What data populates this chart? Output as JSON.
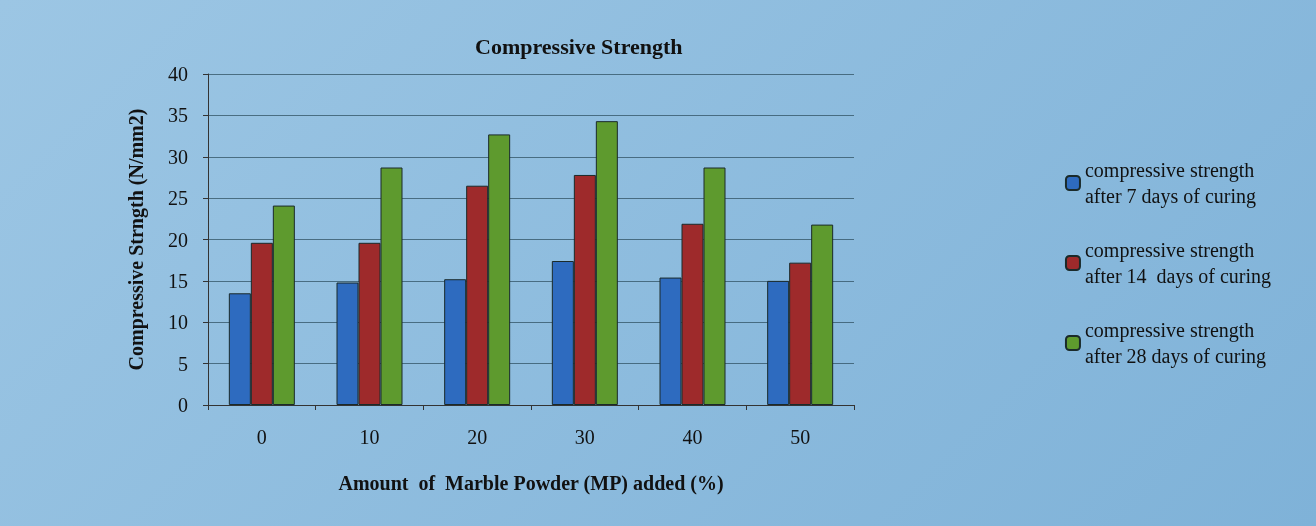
{
  "chart_data": {
    "type": "bar",
    "title": "Compressive Strength",
    "xlabel": "Amount  of  Marble Powder (MP) added (%)",
    "ylabel": "Compressive Strngth (N/mm2)",
    "categories": [
      "0",
      "10",
      "20",
      "30",
      "40",
      "50"
    ],
    "series": [
      {
        "name": "compressive strength\nafter 7 days of curing",
        "color": "#2e6bbf",
        "values": [
          13.5,
          14.8,
          15.2,
          17.4,
          15.4,
          15.0
        ]
      },
      {
        "name": "compressive strength\nafter 14  days of curing",
        "color": "#9e2a2b",
        "values": [
          19.6,
          19.6,
          26.5,
          27.8,
          21.9,
          17.2
        ]
      },
      {
        "name": "compressive strength\nafter 28 days of curing",
        "color": "#5e9a2e",
        "values": [
          24.1,
          28.7,
          32.7,
          34.3,
          28.7,
          21.8
        ]
      }
    ],
    "ylim": [
      0,
      40
    ],
    "yticks": [
      0,
      5,
      10,
      15,
      20,
      25,
      30,
      35,
      40
    ],
    "grid": "y",
    "legend": "right"
  }
}
